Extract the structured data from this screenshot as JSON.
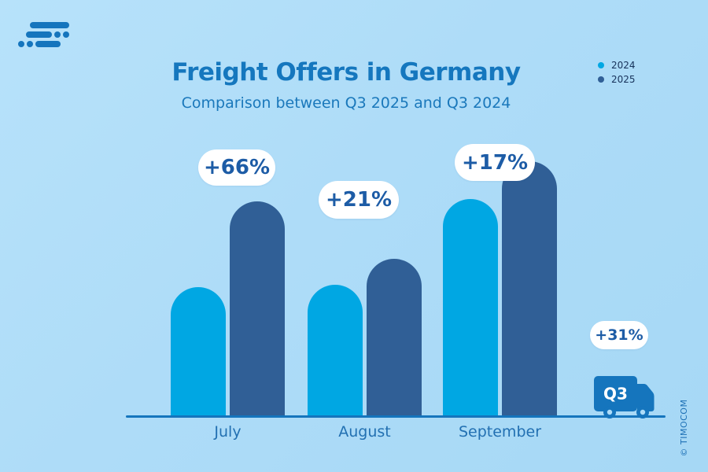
{
  "colors": {
    "background": "#aedcf8",
    "brand_blue": "#1575bd",
    "bar_2024": "#00a7e3",
    "bar_2025": "#305f96",
    "pill_text": "#1d5ca6",
    "pill_background": "#ffffff",
    "legend_text": "#17325a",
    "title_text": "#1577be"
  },
  "header": {
    "title": "Freight Offers in Germany",
    "subtitle": "Comparison between Q3 2025 and Q3 2024"
  },
  "truck": {
    "label": "Q3"
  },
  "footer": {
    "copyright": "© TIMOCOM"
  },
  "chart_data": {
    "type": "bar",
    "title": "Freight Offers in Germany",
    "subtitle": "Comparison between Q3 2025 and Q3 2024",
    "categories": [
      "July",
      "August",
      "September"
    ],
    "series": [
      {
        "name": "2024",
        "color": "#00a7e3",
        "values": [
          100,
          102,
          168
        ]
      },
      {
        "name": "2025",
        "color": "#305f96",
        "values": [
          166,
          122,
          197
        ]
      }
    ],
    "unit": "relative index (July 2024 = 100); no numeric y-axis shown",
    "annotations": [
      {
        "target": "July",
        "label": "+66%"
      },
      {
        "target": "August",
        "label": "+21%"
      },
      {
        "target": "September",
        "label": "+17%"
      },
      {
        "target": "Q3 overall",
        "label": "+31%"
      }
    ],
    "legend_position": "top-right",
    "grid": false,
    "y_axis_hidden": true
  }
}
